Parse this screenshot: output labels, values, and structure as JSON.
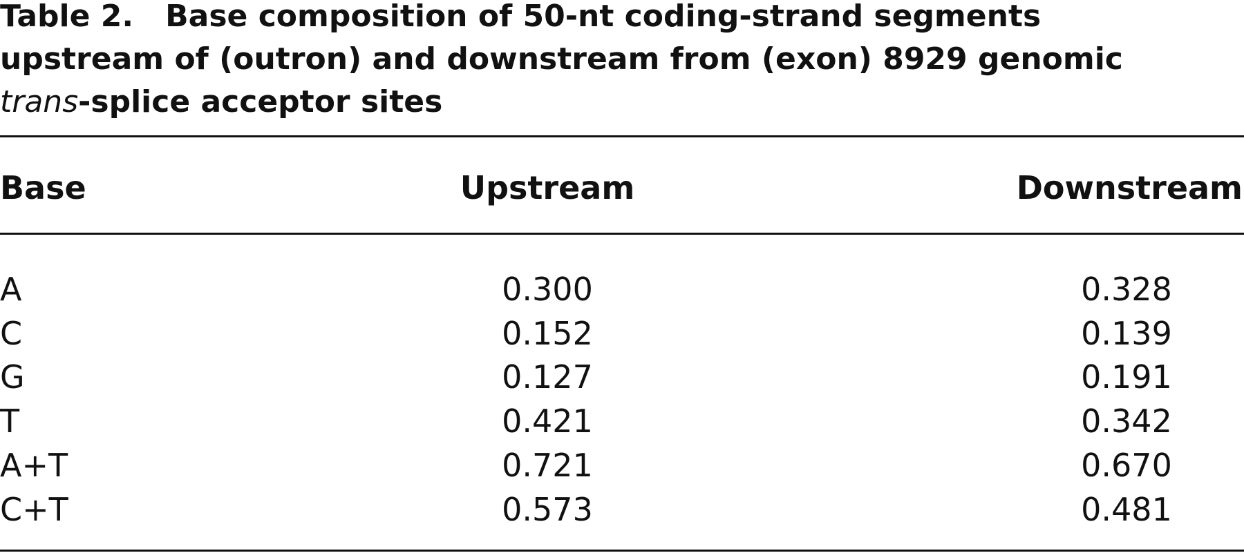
{
  "title": {
    "label": "Table 2.",
    "line1": "Base composition of 50-nt coding-strand segments",
    "line2": "upstream of (outron) and downstream from (exon) 8929 genomic",
    "line3_italic": "trans",
    "line3": "-splice acceptor sites"
  },
  "table": {
    "header": [
      "Base",
      "Upstream",
      "Downstream"
    ],
    "rows": [
      [
        "A",
        "0.300",
        "0.328"
      ],
      [
        "C",
        "0.152",
        "0.139"
      ],
      [
        "G",
        "0.127",
        "0.191"
      ],
      [
        "T",
        "0.421",
        "0.342"
      ],
      [
        "A+T",
        "0.721",
        "0.670"
      ],
      [
        "C+T",
        "0.573",
        "0.481"
      ]
    ]
  }
}
